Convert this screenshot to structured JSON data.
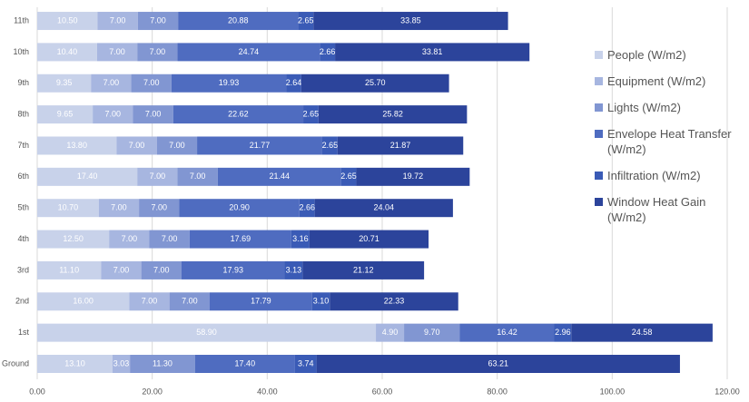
{
  "chart_data": {
    "type": "stacked-bar-horizontal",
    "categories": [
      "Ground",
      "1st",
      "2nd",
      "3rd",
      "4th",
      "5th",
      "6th",
      "7th",
      "8th",
      "9th",
      "10th",
      "11th"
    ],
    "series": [
      {
        "name": "People (W/m2)",
        "color": "#c8d2ea",
        "values": [
          13.1,
          58.9,
          16.0,
          11.1,
          12.5,
          10.7,
          17.4,
          13.8,
          9.65,
          9.35,
          10.4,
          10.5
        ],
        "value_labels": [
          "13.10",
          "58.90",
          "16.00",
          "11.10",
          "12.50",
          "10.70",
          "17.40",
          "13.80",
          "9.65",
          "9.35",
          "10.40",
          "10.50"
        ]
      },
      {
        "name": "Equipment (W/m2)",
        "color": "#a7b6e0",
        "values": [
          3.03,
          4.9,
          7,
          7,
          7,
          7,
          7,
          7,
          7,
          7,
          7,
          7
        ],
        "value_labels": [
          "3.03",
          "4.90",
          "7.00",
          "7.00",
          "7.00",
          "7.00",
          "7.00",
          "7.00",
          "7.00",
          "7.00",
          "7.00",
          "7.00"
        ]
      },
      {
        "name": "Lights (W/m2)",
        "color": "#8196d2",
        "values": [
          11.3,
          9.7,
          7,
          7,
          7,
          7,
          7,
          7,
          7,
          7,
          7,
          7
        ],
        "value_labels": [
          "11.30",
          "9.70",
          "7.00",
          "7.00",
          "7.00",
          "7.00",
          "7.00",
          "7.00",
          "7.00",
          "7.00",
          "7.00",
          "7.00"
        ]
      },
      {
        "name": "Envelope Heat Transfer (W/m2)",
        "color": "#4f6cc0",
        "values": [
          17.4,
          16.42,
          17.79,
          17.93,
          17.69,
          20.9,
          21.44,
          21.77,
          22.62,
          19.93,
          24.74,
          20.88
        ],
        "value_labels": [
          "17.40",
          "16.42",
          "17.79",
          "17.93",
          "17.69",
          "20.90",
          "21.44",
          "21.77",
          "22.62",
          "19.93",
          "24.74",
          "20.88"
        ]
      },
      {
        "name": "Infiltration (W/m2)",
        "color": "#3a5bb6",
        "values": [
          3.74,
          2.96,
          3.1,
          3.13,
          3.16,
          2.66,
          2.65,
          2.65,
          2.65,
          2.64,
          2.66,
          2.65
        ],
        "value_labels": [
          "3.74",
          "2.96",
          "3.10",
          "3.13",
          "3.16",
          "2.66",
          "2.65",
          "2.65",
          "2.65",
          "2.64",
          "2.66",
          "2.65"
        ]
      },
      {
        "name": "Window Heat Gain (W/m2)",
        "color": "#2c449b",
        "values": [
          63.21,
          24.58,
          22.33,
          21.12,
          20.71,
          24.04,
          19.72,
          21.87,
          25.82,
          25.7,
          33.81,
          33.85
        ],
        "value_labels": [
          "63.21",
          "24.58",
          "22.33",
          "21.12",
          "20.71",
          "24.04",
          "19.72",
          "21.87",
          "25.82",
          "25.70",
          "33.81",
          "33.85"
        ]
      }
    ],
    "xlim": [
      0,
      120
    ],
    "xticks": [
      {
        "value": 0,
        "label": "0.00"
      },
      {
        "value": 20,
        "label": "20.00"
      },
      {
        "value": 40,
        "label": "40.00"
      },
      {
        "value": 60,
        "label": "60.00"
      },
      {
        "value": 80,
        "label": "80.00"
      },
      {
        "value": 100,
        "label": "100.00"
      },
      {
        "value": 120,
        "label": "120.00"
      }
    ],
    "grid": true,
    "legend": "right"
  }
}
